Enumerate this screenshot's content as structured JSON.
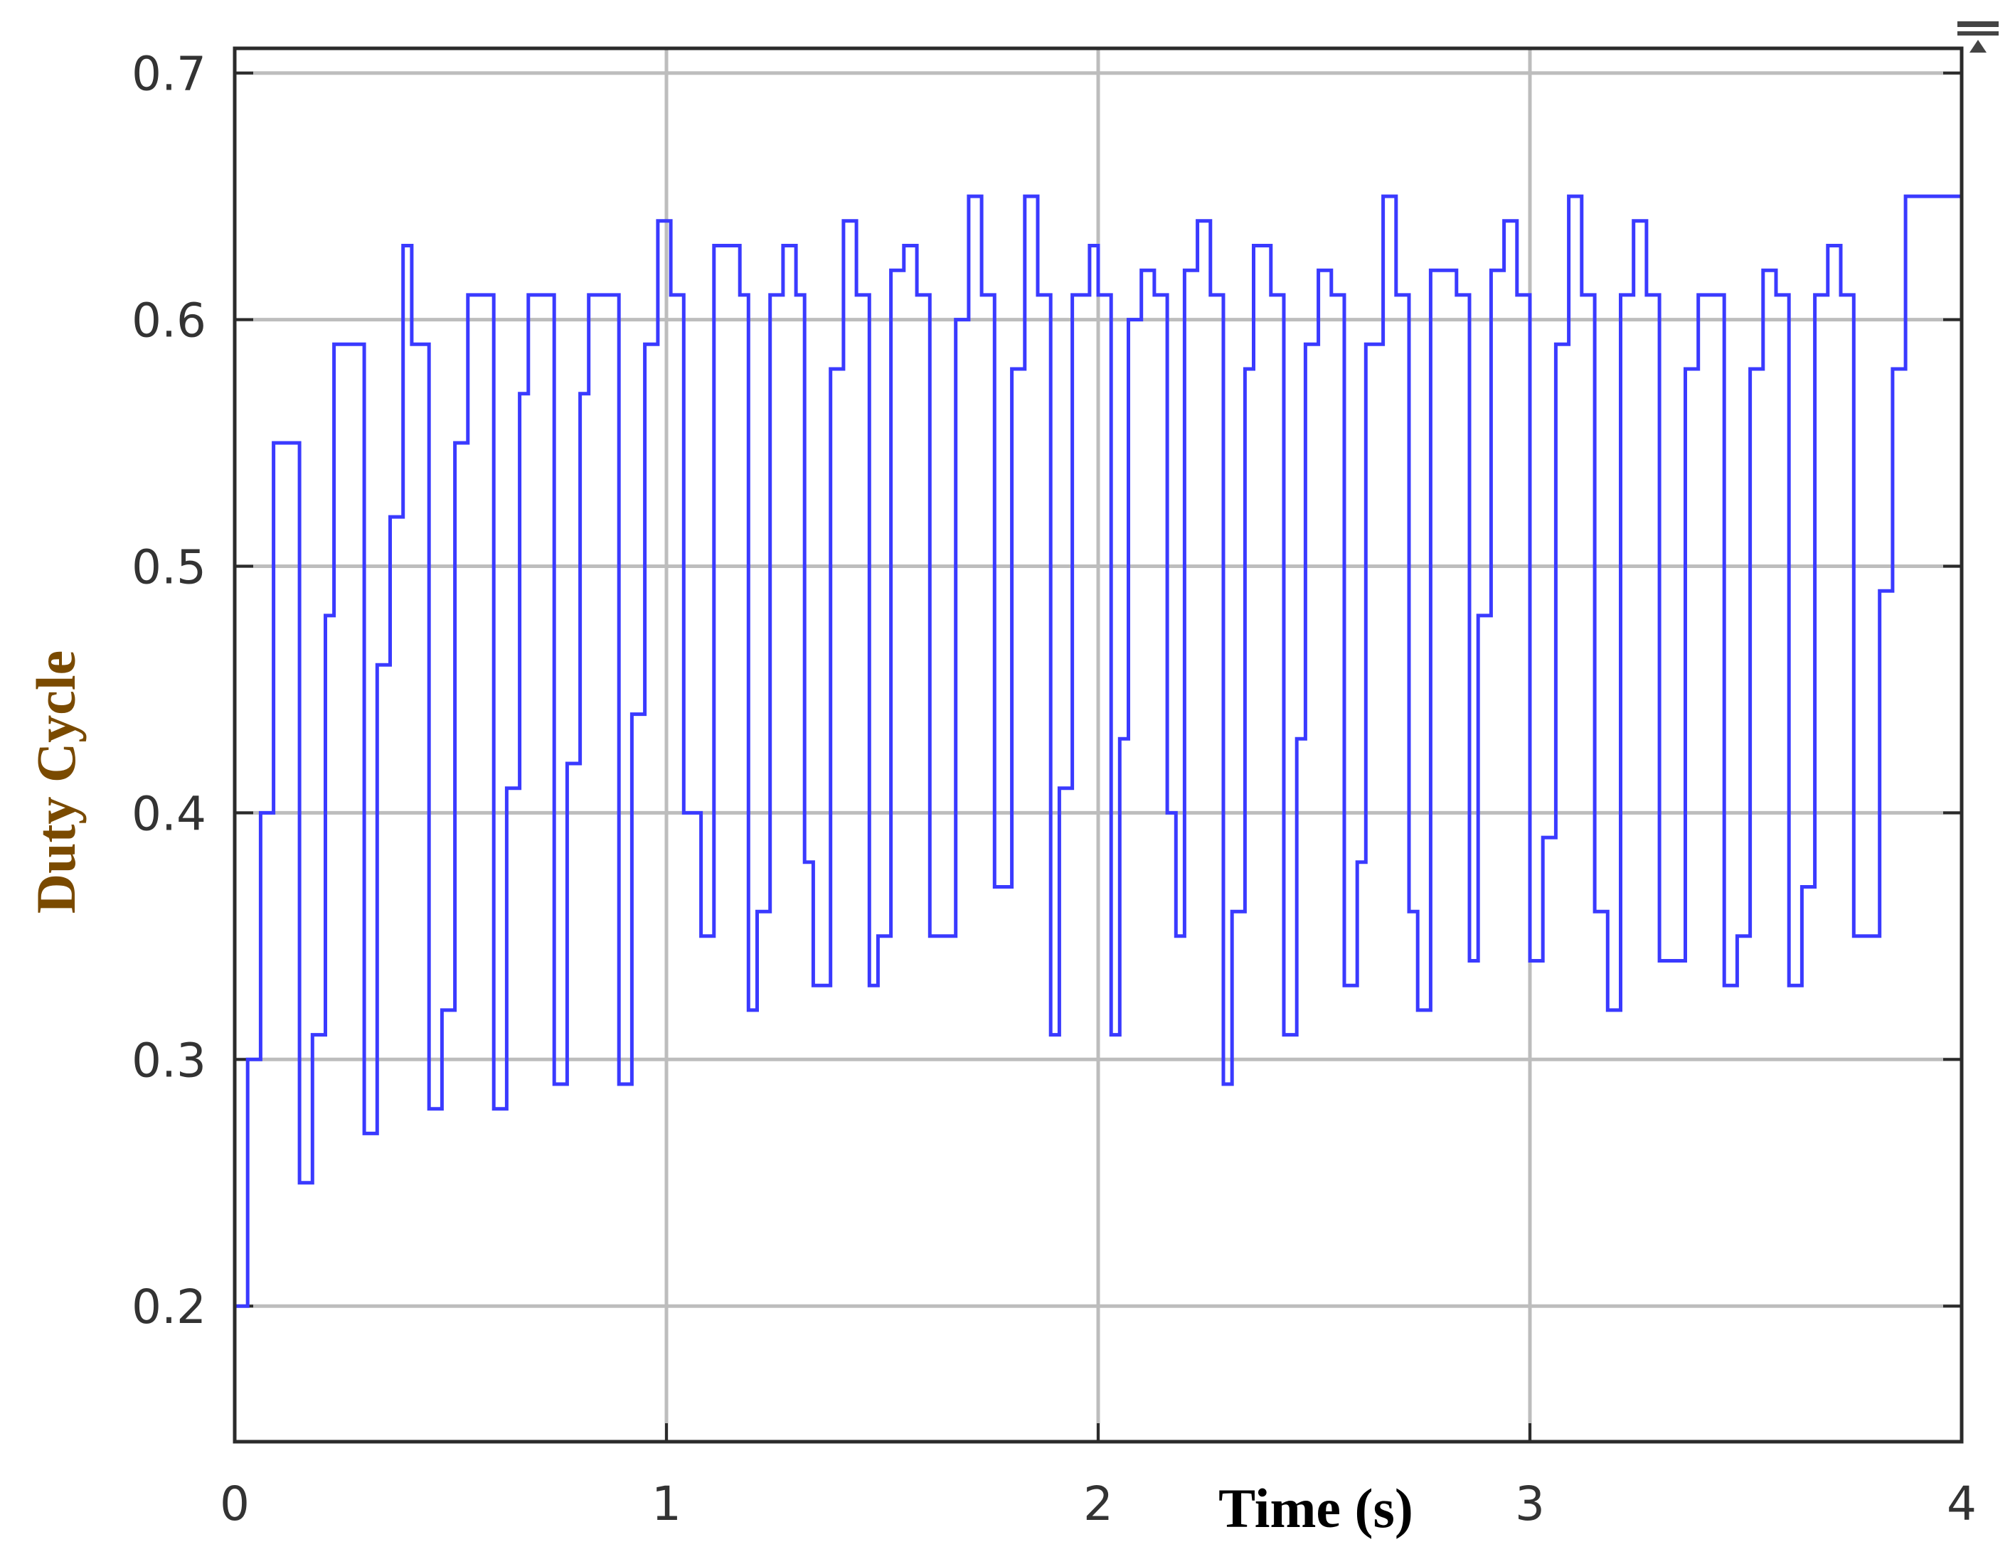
{
  "chart_data": {
    "type": "line",
    "title": "",
    "xlabel": "Time (s)",
    "ylabel": "Duty Cycle",
    "xlim": [
      0,
      4
    ],
    "ylim": [
      0.145,
      0.71
    ],
    "x_ticks": [
      "0",
      "1",
      "2",
      "3",
      "4"
    ],
    "y_ticks": [
      "0.2",
      "0.3",
      "0.4",
      "0.5",
      "0.6",
      "0.7"
    ],
    "grid": true,
    "legend": "none",
    "step": true,
    "series": [
      {
        "color": "#3a3aff",
        "x": [
          0.0,
          0.03,
          0.06,
          0.09,
          0.15,
          0.18,
          0.21,
          0.23,
          0.3,
          0.33,
          0.36,
          0.39,
          0.41,
          0.45,
          0.48,
          0.51,
          0.54,
          0.6,
          0.63,
          0.66,
          0.68,
          0.7,
          0.74,
          0.77,
          0.8,
          0.82,
          0.84,
          0.89,
          0.92,
          0.95,
          0.98,
          1.01,
          1.04,
          1.08,
          1.11,
          1.14,
          1.17,
          1.19,
          1.21,
          1.24,
          1.27,
          1.3,
          1.32,
          1.34,
          1.38,
          1.41,
          1.44,
          1.47,
          1.49,
          1.52,
          1.55,
          1.58,
          1.61,
          1.63,
          1.67,
          1.7,
          1.73,
          1.76,
          1.8,
          1.83,
          1.86,
          1.89,
          1.91,
          1.94,
          1.98,
          2.0,
          2.03,
          2.05,
          2.07,
          2.1,
          2.13,
          2.16,
          2.18,
          2.2,
          2.23,
          2.26,
          2.29,
          2.31,
          2.34,
          2.36,
          2.4,
          2.43,
          2.46,
          2.48,
          2.51,
          2.54,
          2.57,
          2.6,
          2.62,
          2.66,
          2.69,
          2.72,
          2.74,
          2.77,
          2.8,
          2.83,
          2.86,
          2.88,
          2.91,
          2.94,
          2.97,
          3.0,
          3.03,
          3.06,
          3.09,
          3.12,
          3.15,
          3.18,
          3.21,
          3.24,
          3.27,
          3.3,
          3.33,
          3.36,
          3.39,
          3.42,
          3.45,
          3.48,
          3.51,
          3.54,
          3.57,
          3.6,
          3.63,
          3.66,
          3.69,
          3.72,
          3.75,
          3.78,
          3.81,
          3.84,
          3.87,
          3.9,
          3.93,
          3.96,
          3.99
        ],
        "y": [
          0.2,
          0.3,
          0.4,
          0.55,
          0.25,
          0.31,
          0.48,
          0.59,
          0.27,
          0.46,
          0.52,
          0.63,
          0.59,
          0.28,
          0.32,
          0.55,
          0.61,
          0.28,
          0.41,
          0.57,
          0.61,
          0.61,
          0.29,
          0.42,
          0.57,
          0.61,
          0.61,
          0.29,
          0.44,
          0.59,
          0.64,
          0.61,
          0.4,
          0.35,
          0.63,
          0.63,
          0.61,
          0.32,
          0.36,
          0.61,
          0.63,
          0.61,
          0.38,
          0.33,
          0.58,
          0.64,
          0.61,
          0.33,
          0.35,
          0.62,
          0.63,
          0.61,
          0.35,
          0.35,
          0.6,
          0.65,
          0.61,
          0.37,
          0.58,
          0.65,
          0.61,
          0.31,
          0.41,
          0.61,
          0.63,
          0.61,
          0.31,
          0.43,
          0.6,
          0.62,
          0.61,
          0.4,
          0.35,
          0.62,
          0.64,
          0.61,
          0.29,
          0.36,
          0.58,
          0.63,
          0.61,
          0.31,
          0.43,
          0.59,
          0.62,
          0.61,
          0.33,
          0.38,
          0.59,
          0.65,
          0.61,
          0.36,
          0.32,
          0.62,
          0.62,
          0.61,
          0.34,
          0.48,
          0.62,
          0.64,
          0.61,
          0.34,
          0.39,
          0.59,
          0.65,
          0.61,
          0.36,
          0.32,
          0.61,
          0.64,
          0.61,
          0.34,
          0.34,
          0.58,
          0.61,
          0.61,
          0.33,
          0.35,
          0.58,
          0.62,
          0.61,
          0.33,
          0.37,
          0.61,
          0.63,
          0.61,
          0.35,
          0.35,
          0.49,
          0.58,
          0.65,
          0.65,
          0.65,
          0.65,
          0.65
        ]
      }
    ]
  }
}
